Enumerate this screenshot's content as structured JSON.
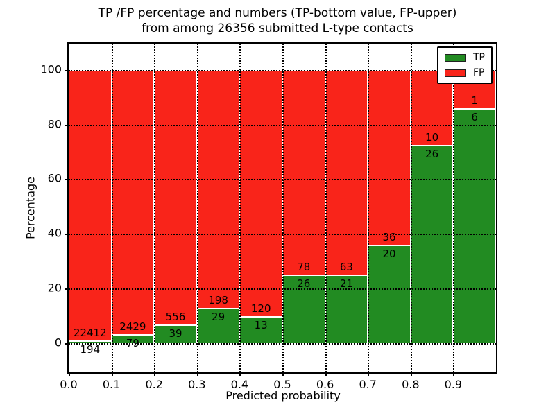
{
  "chart_data": {
    "type": "bar",
    "stacked": true,
    "normalized": "percent",
    "title_line1": "TP /FP percentage and numbers (TP-bottom value, FP-upper)",
    "title_line2": "from among 26356 submitted L-type contacts",
    "xlabel": "Predicted probability",
    "ylabel": "Percentage",
    "categories": [
      "0.0",
      "0.1",
      "0.2",
      "0.3",
      "0.4",
      "0.5",
      "0.6",
      "0.7",
      "0.8",
      "0.9"
    ],
    "series": [
      {
        "name": "TP",
        "color": "#228b22",
        "values": [
          194,
          79,
          39,
          29,
          13,
          26,
          21,
          20,
          26,
          6
        ]
      },
      {
        "name": "FP",
        "color": "#f9241a",
        "values": [
          22412,
          2429,
          556,
          198,
          120,
          78,
          63,
          36,
          10,
          1
        ]
      }
    ],
    "tp_percent_of_bin": [
      0.86,
      3.15,
      6.55,
      12.78,
      9.77,
      25.0,
      25.0,
      35.71,
      72.22,
      85.71
    ],
    "yticks": [
      0,
      20,
      40,
      60,
      80,
      100
    ],
    "xticks": [
      "0.0",
      "0.1",
      "0.2",
      "0.3",
      "0.4",
      "0.5",
      "0.6",
      "0.7",
      "0.8",
      "0.9"
    ],
    "ylim": [
      -11,
      110
    ],
    "xlim": [
      0.0,
      1.0
    ],
    "grid": "dotted black, drawn over bars",
    "legend_position": "upper right",
    "bar_edge_color": "#ffffff",
    "total_submitted": 26356
  }
}
